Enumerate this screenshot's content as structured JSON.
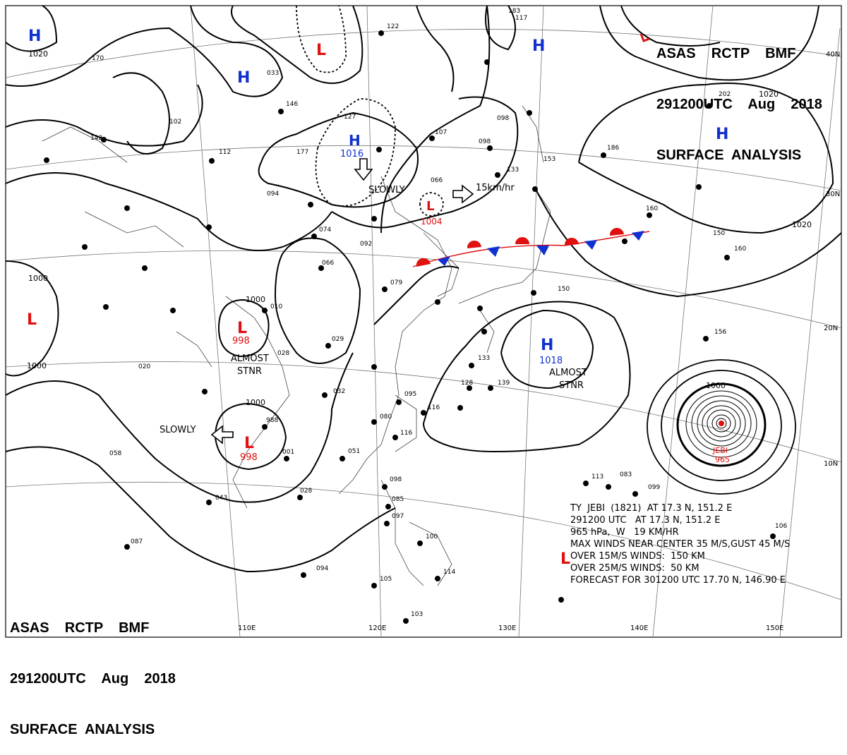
{
  "header": {
    "line1": "ASAS    RCTP    BMF",
    "line2": "291200UTC    Aug    2018",
    "line3": "SURFACE  ANALYSIS"
  },
  "colors": {
    "high": "#1030d0",
    "low": "#e01010",
    "isobar": "#000000",
    "cold_front": "#1030d0",
    "warm_front": "#e01010"
  },
  "grid": {
    "lon_labels": [
      "110E",
      "120E",
      "130E",
      "140E",
      "150E"
    ],
    "lat_labels": [
      "40N",
      "30N",
      "20N",
      "10N"
    ]
  },
  "pressure_centers": [
    {
      "type": "H",
      "value": ""
    },
    {
      "type": "H",
      "value": ""
    },
    {
      "type": "H",
      "value": "1016"
    },
    {
      "type": "H",
      "value": ""
    },
    {
      "type": "H",
      "value": ""
    },
    {
      "type": "H",
      "value": "1018"
    },
    {
      "type": "L",
      "value": ""
    },
    {
      "type": "L",
      "value": ""
    },
    {
      "type": "L",
      "value": "1004"
    },
    {
      "type": "L",
      "value": "998"
    },
    {
      "type": "L",
      "value": "998"
    },
    {
      "type": "L",
      "value": ""
    }
  ],
  "isobar_labels": [
    "1020",
    "1000",
    "1000",
    "1000",
    "1016",
    "1020",
    "1020",
    "1000",
    "1000"
  ],
  "annotations": {
    "slowly_1": "SLOWLY",
    "slowly_2": "SLOWLY",
    "speed": "15km/hr",
    "stnr_1a": "ALMOST",
    "stnr_1b": "STNR",
    "stnr_2a": "ALMOST",
    "stnr_2b": "STNR"
  },
  "typhoon": {
    "name": "JEBI",
    "pressure": "965",
    "lines": [
      "TY  JEBI  (1821)  AT 17.3 N, 151.2 E",
      "291200 UTC   AT 17.3 N, 151.2 E",
      "965 hPa,  W   19 KM/HR",
      "MAX WINDS NEAR CENTER 35 M/S,GUST 45 M/S",
      "OVER 15M/S WINDS:  150 KM",
      "OVER 25M/S WINDS:  50 KM",
      "FORECAST FOR 301200 UTC 17.70 N, 146.90 E"
    ]
  },
  "station_numbers": [
    "122",
    "098",
    "107",
    "098",
    "133",
    "153",
    "186",
    "066",
    "094",
    "074",
    "092",
    "066",
    "079",
    "010",
    "029",
    "028",
    "020",
    "032",
    "095",
    "080",
    "116",
    "051",
    "098",
    "085",
    "097",
    "100",
    "094",
    "105",
    "103",
    "114",
    "113",
    "083",
    "099",
    "106",
    "150",
    "156",
    "160",
    "160",
    "150",
    "133",
    "128",
    "139",
    "116",
    "043",
    "028",
    "058",
    "087",
    "112",
    "177",
    "146",
    "102",
    "142",
    "170",
    "988",
    "001",
    "117",
    "183",
    "202",
    "127",
    "033"
  ]
}
